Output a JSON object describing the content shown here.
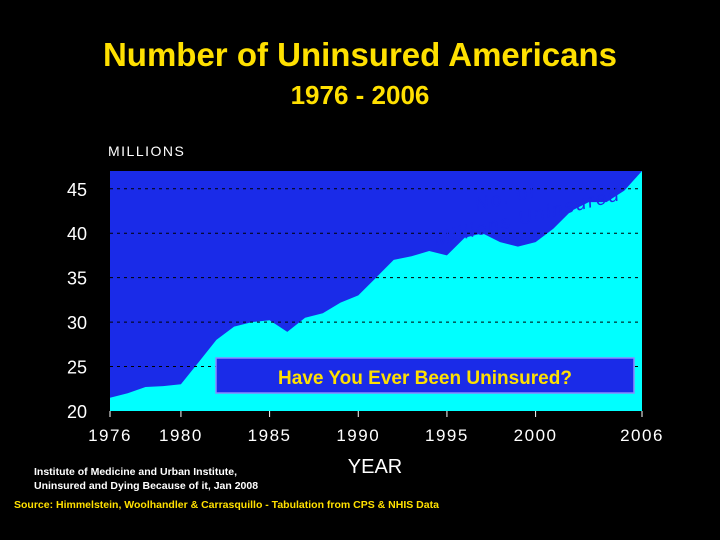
{
  "title": "Number of Uninsured Americans",
  "subtitle": "1976 - 2006",
  "credit_line1": "Institute of Medicine and Urban Institute,",
  "credit_line2": "Uninsured and Dying Because of it, Jan 2008",
  "source": "Source: Himmelstein, Woolhandler & Carrasquillo - Tabulation from CPS & NHIS Data",
  "colors": {
    "title": "#FFE000",
    "plot_bg": "#1A2BE8",
    "area": "#00FFFF",
    "banner_bg": "#1A2BE8",
    "banner_text": "#FFE000"
  },
  "chart_data": {
    "type": "area",
    "ylabel": "MILLIONS",
    "xlabel": "YEAR",
    "xlim": [
      1976,
      2006
    ],
    "ylim": [
      20,
      47
    ],
    "x_ticks": [
      1976,
      1980,
      1985,
      1990,
      1995,
      2000,
      2006
    ],
    "y_ticks": [
      20,
      25,
      30,
      35,
      40,
      45
    ],
    "grid": "horizontal dashed",
    "series_label": "No. of Millions Uninsured",
    "banner": "Have You Ever Been Uninsured?",
    "x": [
      1976,
      1977,
      1978,
      1979,
      1980,
      1981,
      1982,
      1983,
      1984,
      1985,
      1986,
      1987,
      1988,
      1989,
      1990,
      1991,
      1992,
      1993,
      1994,
      1995,
      1996,
      1997,
      1998,
      1999,
      2000,
      2001,
      2002,
      2003,
      2004,
      2005,
      2006
    ],
    "values": [
      21.5,
      22.0,
      22.7,
      22.8,
      23.0,
      25.5,
      28.0,
      29.5,
      30.0,
      30.2,
      28.9,
      30.5,
      31.0,
      32.2,
      33.0,
      35.0,
      37.0,
      37.4,
      38.0,
      37.5,
      39.5,
      40.0,
      39.0,
      38.5,
      39.0,
      40.5,
      42.5,
      43.5,
      43.5,
      44.8,
      47.0
    ]
  }
}
